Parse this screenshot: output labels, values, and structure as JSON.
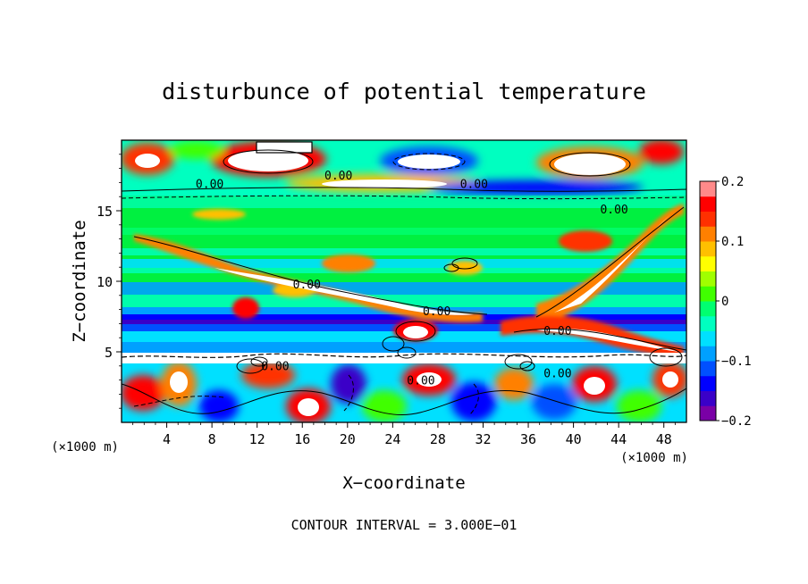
{
  "chart_data": {
    "type": "heatmap",
    "title": "disturbunce of potential temperature",
    "xlabel": "X−coordinate",
    "ylabel": "Z−coordinate",
    "x_unit_left": "(×1000 m)",
    "x_unit_right": "(×1000 m)",
    "footer": "CONTOUR INTERVAL = 3.000E−01",
    "xlim": [
      0,
      50
    ],
    "ylim": [
      0,
      20
    ],
    "x_ticks": [
      4,
      8,
      12,
      16,
      20,
      24,
      28,
      32,
      36,
      40,
      44,
      48
    ],
    "x_tick_labels": [
      "4",
      "8",
      "12",
      "16",
      "20",
      "24",
      "28",
      "32",
      "36",
      "40",
      "44",
      "48"
    ],
    "y_ticks": [
      5,
      10,
      15
    ],
    "y_tick_labels": [
      "5",
      "10",
      "15"
    ],
    "colorbar": {
      "range": [
        -0.2,
        0.2
      ],
      "ticks": [
        0.2,
        0.1,
        0,
        -0.1,
        -0.2
      ],
      "tick_labels": [
        "0.2",
        "0.1",
        "0",
        "−0.1",
        "−0.2"
      ],
      "colors": [
        "#7a00a6",
        "#3a00c8",
        "#0000ff",
        "#0050ff",
        "#00a0ff",
        "#00e0ff",
        "#00ffc0",
        "#00ff70",
        "#40ff00",
        "#a0ff00",
        "#ffff00",
        "#ffc000",
        "#ff8000",
        "#ff3000",
        "#ff0000",
        "#ff8a8a"
      ]
    },
    "contour_labels": [
      {
        "text": "0.00",
        "x": 7.8,
        "z": 16.6
      },
      {
        "text": "0.00",
        "x": 19.2,
        "z": 17.2
      },
      {
        "text": "0.00",
        "x": 31.2,
        "z": 16.6
      },
      {
        "text": "0.00",
        "x": 43.6,
        "z": 14.8
      },
      {
        "text": "0.00",
        "x": 16.4,
        "z": 9.5
      },
      {
        "text": "0.00",
        "x": 27.9,
        "z": 7.6
      },
      {
        "text": "0.00",
        "x": 38.6,
        "z": 6.2
      },
      {
        "text": "0.00",
        "x": 13.6,
        "z": 3.7
      },
      {
        "text": "0.00",
        "x": 26.5,
        "z": 2.7
      },
      {
        "text": "0.00",
        "x": 38.6,
        "z": 3.2
      }
    ],
    "grid": false,
    "legend": "colorbar-right"
  }
}
